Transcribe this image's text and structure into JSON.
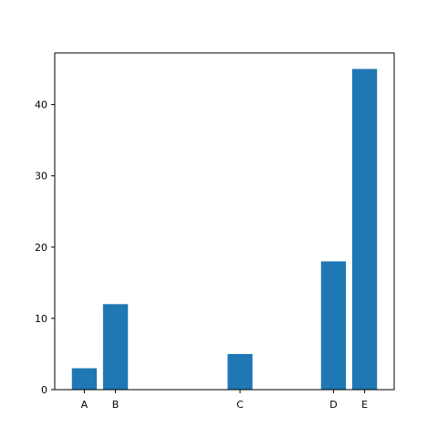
{
  "chart_data": {
    "type": "bar",
    "categories": [
      "A",
      "B",
      "C",
      "D",
      "E"
    ],
    "x": [
      0,
      1,
      5,
      8,
      9
    ],
    "values": [
      3,
      12,
      5,
      18,
      45
    ],
    "xlim": [
      -0.95,
      9.95
    ],
    "ylim": [
      0,
      47.25
    ],
    "yticks": [
      0,
      10,
      20,
      30,
      40
    ],
    "title": "",
    "xlabel": "",
    "ylabel": "",
    "grid": false,
    "colors": {
      "bar": "#1f77b4",
      "axis": "#000000",
      "background": "#ffffff"
    }
  }
}
